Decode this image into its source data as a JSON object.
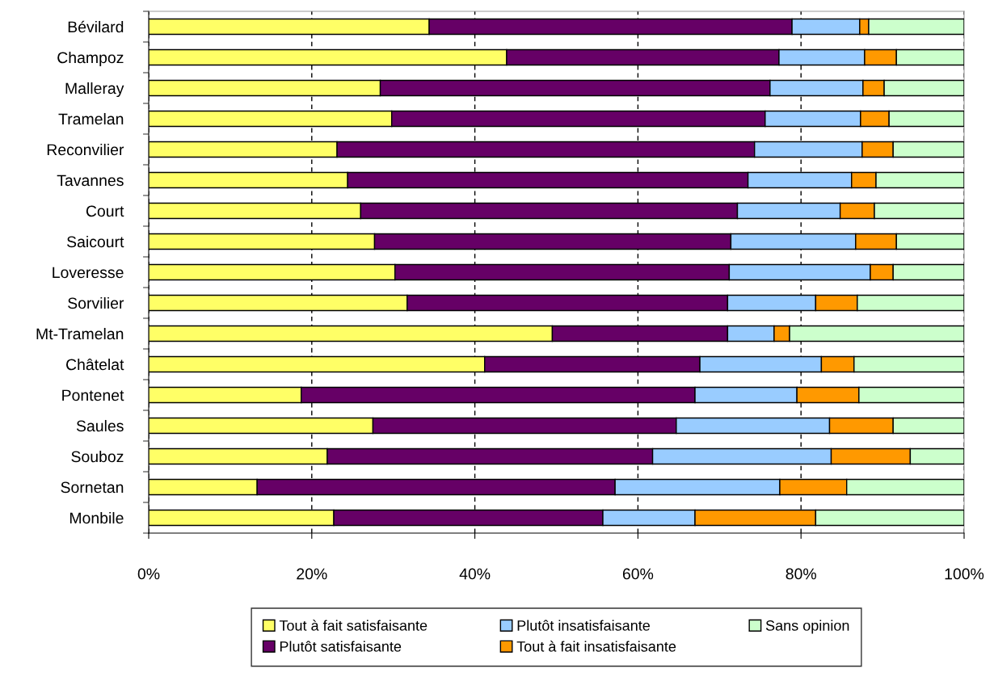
{
  "chart_data": {
    "type": "bar",
    "orientation": "horizontal",
    "stacked": true,
    "categories": [
      "Bévilard",
      "Champoz",
      "Malleray",
      "Tramelan",
      "Reconvilier",
      "Tavannes",
      "Court",
      "Saicourt",
      "Loveresse",
      "Sorvilier",
      "Mt-Tramelan",
      "Châtelat",
      "Pontenet",
      "Saules",
      "Souboz",
      "Sornetan",
      "Monbile"
    ],
    "series": [
      {
        "name": "Tout à fait satisfaisante",
        "color": "#ffff66",
        "values": [
          34.4,
          43.9,
          28.4,
          29.8,
          23.1,
          24.4,
          26.0,
          27.7,
          30.2,
          31.7,
          49.5,
          41.2,
          18.7,
          27.5,
          21.9,
          13.3,
          22.7
        ]
      },
      {
        "name": "Plutôt satisfaisante",
        "color": "#660066",
        "values": [
          44.5,
          33.4,
          47.8,
          45.8,
          51.2,
          49.1,
          46.2,
          43.7,
          41.0,
          39.3,
          21.5,
          26.4,
          48.3,
          37.2,
          39.9,
          43.9,
          33.0
        ]
      },
      {
        "name": "Plutôt insatisfaisante",
        "color": "#99ccff",
        "values": [
          8.3,
          10.5,
          11.4,
          11.7,
          13.2,
          12.7,
          12.6,
          15.3,
          17.3,
          10.8,
          5.7,
          14.9,
          12.5,
          18.8,
          21.9,
          20.2,
          11.3
        ]
      },
      {
        "name": "Tout à fait insatisfaisante",
        "color": "#ff9900",
        "values": [
          1.1,
          3.9,
          2.6,
          3.5,
          3.8,
          3.0,
          4.2,
          5.0,
          2.8,
          5.1,
          1.9,
          4.0,
          7.6,
          7.8,
          9.7,
          8.2,
          14.8
        ]
      },
      {
        "name": "Sans opinion",
        "color": "#ccffcc",
        "values": [
          11.7,
          8.3,
          9.8,
          9.2,
          8.7,
          10.8,
          11.0,
          8.3,
          8.7,
          13.1,
          21.4,
          13.5,
          12.9,
          8.7,
          6.6,
          14.4,
          18.2
        ]
      }
    ],
    "xlim": [
      0,
      100
    ],
    "xticks": [
      {
        "value": 0,
        "label": "0%"
      },
      {
        "value": 20,
        "label": "20%"
      },
      {
        "value": 40,
        "label": "40%"
      },
      {
        "value": 60,
        "label": "60%"
      },
      {
        "value": 80,
        "label": "80%"
      },
      {
        "value": 100,
        "label": "100%"
      }
    ],
    "grid": "x",
    "legend": "bottom"
  }
}
